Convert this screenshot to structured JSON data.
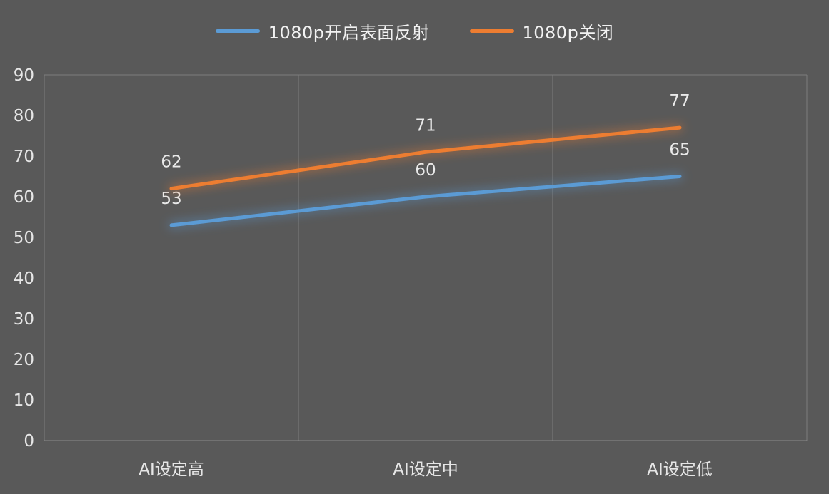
{
  "colors": {
    "background": "#595959",
    "grid": "#7d7d7d",
    "axis": "#8c8c8c",
    "tick_text": "#e6e6e6",
    "label_text": "#eaeaea",
    "blue": "#5b9bd5",
    "orange": "#ed7d31"
  },
  "legend": {
    "items": [
      {
        "label": "1080p开启表面反射",
        "color": "#5b9bd5"
      },
      {
        "label": "1080p关闭",
        "color": "#ed7d31"
      }
    ]
  },
  "chart_data": {
    "type": "line",
    "title": "",
    "xlabel": "",
    "ylabel": "",
    "categories": [
      "AI设定高",
      "AI设定中",
      "AI设定低"
    ],
    "series": [
      {
        "name": "1080p开启表面反射",
        "color": "#5b9bd5",
        "values": [
          53,
          60,
          65
        ]
      },
      {
        "name": "1080p关闭",
        "color": "#ed7d31",
        "values": [
          62,
          71,
          77
        ]
      }
    ],
    "ylim": [
      0,
      90
    ],
    "ytick_step": 10,
    "grid": "plot-border-and-vertical-dividers",
    "legend_position": "top",
    "glow": true
  }
}
